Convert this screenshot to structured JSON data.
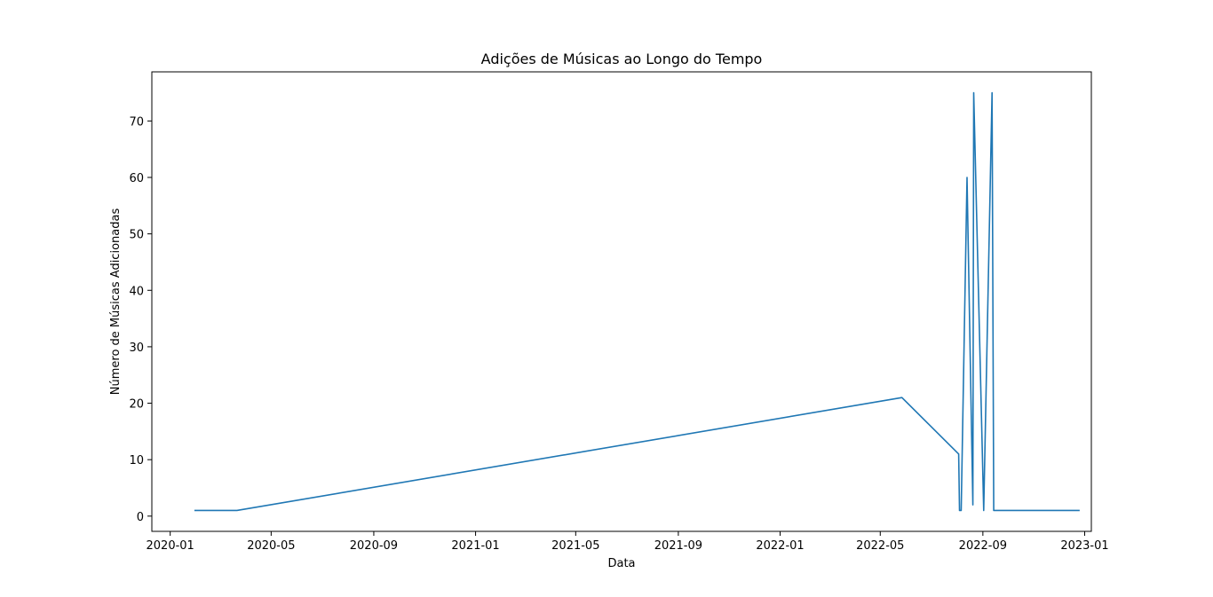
{
  "chart_data": {
    "type": "line",
    "title": "Adições de Músicas ao Longo do Tempo",
    "xlabel": "Data",
    "ylabel": "Número de Músicas Adicionadas",
    "grid": false,
    "legend": "none",
    "line_color": "#1f77b4",
    "xlim": [
      "2019-12-10",
      "2023-01-09"
    ],
    "ylim": [
      -2.7,
      78.7
    ],
    "x_ticks": [
      {
        "date": "2020-01-01",
        "label": "2020-01"
      },
      {
        "date": "2020-05-01",
        "label": "2020-05"
      },
      {
        "date": "2020-09-01",
        "label": "2020-09"
      },
      {
        "date": "2021-01-01",
        "label": "2021-01"
      },
      {
        "date": "2021-05-01",
        "label": "2021-05"
      },
      {
        "date": "2021-09-01",
        "label": "2021-09"
      },
      {
        "date": "2022-01-01",
        "label": "2022-01"
      },
      {
        "date": "2022-05-01",
        "label": "2022-05"
      },
      {
        "date": "2022-09-01",
        "label": "2022-09"
      },
      {
        "date": "2023-01-01",
        "label": "2023-01"
      }
    ],
    "y_ticks": [
      0,
      10,
      20,
      30,
      40,
      50,
      60,
      70
    ],
    "series": [
      {
        "x": [
          "2020-01-30",
          "2020-03-21",
          "2022-05-27",
          "2022-08-03",
          "2022-08-04",
          "2022-08-06",
          "2022-08-13",
          "2022-08-20",
          "2022-08-21",
          "2022-09-02",
          "2022-09-12",
          "2022-09-14",
          "2022-12-26"
        ],
        "y": [
          1,
          1,
          21,
          11,
          1,
          1,
          60,
          2,
          75,
          1,
          75,
          1,
          1
        ]
      }
    ]
  }
}
